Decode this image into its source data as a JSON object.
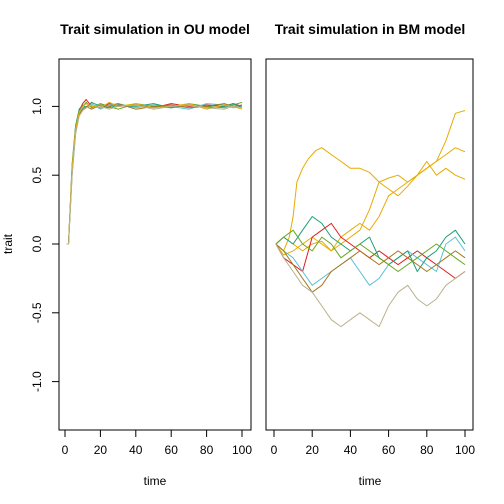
{
  "chart_data": [
    {
      "type": "line",
      "title": "Trait simulation in OU model",
      "xlabel": "time",
      "ylabel": "trait",
      "xlim": [
        0,
        100
      ],
      "ylim": [
        -1.25,
        1.25
      ],
      "xticks": [
        "0",
        "20",
        "40",
        "60",
        "80",
        "100"
      ],
      "yticks": [
        "-1.0",
        "-0.5",
        "0.0",
        "0.5",
        "1.0"
      ],
      "grid": false,
      "legend": "none",
      "series": [
        {
          "color": "#E41A1C",
          "x": [
            1,
            2,
            4,
            6,
            8,
            10,
            12,
            15,
            20,
            25,
            30,
            40,
            50,
            60,
            70,
            80,
            90,
            95,
            100
          ],
          "y": [
            0.0,
            0.0,
            0.55,
            0.85,
            0.97,
            1.02,
            1.05,
            1.0,
            0.99,
            1.02,
            1.0,
            1.01,
            0.99,
            1.02,
            1.0,
            1.01,
            1.0,
            1.02,
            1.0
          ]
        },
        {
          "color": "#66A61E",
          "x": [
            1,
            2,
            4,
            6,
            8,
            10,
            12,
            15,
            20,
            25,
            30,
            40,
            50,
            60,
            70,
            80,
            90,
            95,
            100
          ],
          "y": [
            0.0,
            0.0,
            0.5,
            0.82,
            0.96,
            1.0,
            1.03,
            0.99,
            1.02,
            1.0,
            0.98,
            1.02,
            1.0,
            0.99,
            1.02,
            1.0,
            0.99,
            1.01,
            1.03
          ]
        },
        {
          "color": "#5BC0D6",
          "x": [
            1,
            2,
            4,
            6,
            8,
            10,
            12,
            15,
            20,
            25,
            30,
            40,
            50,
            60,
            70,
            80,
            90,
            95,
            100
          ],
          "y": [
            0.0,
            0.0,
            0.52,
            0.8,
            0.95,
            0.99,
            1.0,
            1.02,
            0.98,
            1.01,
            1.02,
            0.99,
            1.01,
            1.0,
            0.98,
            1.02,
            1.01,
            0.99,
            1.0
          ]
        },
        {
          "color": "#1B9E77",
          "x": [
            1,
            2,
            4,
            6,
            8,
            10,
            12,
            15,
            20,
            25,
            30,
            40,
            50,
            60,
            70,
            80,
            90,
            95,
            100
          ],
          "y": [
            0.0,
            0.0,
            0.58,
            0.86,
            0.98,
            1.01,
            0.99,
            1.03,
            1.0,
            0.99,
            1.01,
            1.0,
            1.02,
            0.99,
            1.01,
            0.99,
            1.0,
            1.02,
            0.99
          ]
        },
        {
          "color": "#A6761D",
          "x": [
            1,
            2,
            4,
            6,
            8,
            10,
            12,
            15,
            20,
            25,
            30,
            40,
            50,
            60,
            70,
            80,
            90,
            95,
            100
          ],
          "y": [
            0.0,
            0.0,
            0.54,
            0.83,
            0.94,
            0.98,
            1.0,
            0.98,
            1.01,
            1.0,
            1.02,
            0.98,
            1.0,
            1.01,
            0.99,
            1.0,
            1.02,
            1.0,
            1.01
          ]
        },
        {
          "color": "#E6AB02",
          "x": [
            1,
            2,
            4,
            6,
            8,
            10,
            12,
            15,
            20,
            25,
            30,
            40,
            50,
            60,
            70,
            80,
            90,
            95,
            100
          ],
          "y": [
            0.0,
            0.0,
            0.56,
            0.84,
            0.96,
            1.0,
            1.02,
            1.0,
            0.99,
            1.03,
            1.0,
            1.02,
            0.99,
            1.0,
            1.02,
            0.98,
            1.01,
            1.0,
            0.98
          ]
        },
        {
          "color": "#B8B28A",
          "x": [
            1,
            2,
            4,
            6,
            8,
            10,
            12,
            15,
            20,
            25,
            30,
            40,
            50,
            60,
            70,
            80,
            90,
            95,
            100
          ],
          "y": [
            0.0,
            0.0,
            0.5,
            0.8,
            0.93,
            0.97,
            0.99,
            1.01,
            1.0,
            0.98,
            1.0,
            1.01,
            0.98,
            1.0,
            1.01,
            0.99,
            0.98,
            1.0,
            0.99
          ]
        }
      ]
    },
    {
      "type": "line",
      "title": "Trait simulation in BM model",
      "xlabel": "time",
      "ylabel": "",
      "xlim": [
        0,
        100
      ],
      "ylim": [
        -1.25,
        1.25
      ],
      "xticks": [
        "0",
        "20",
        "40",
        "60",
        "80",
        "100"
      ],
      "yticks": [],
      "grid": false,
      "legend": "none",
      "series": [
        {
          "color": "#E6AB02",
          "x": [
            1,
            5,
            8,
            10,
            12,
            15,
            18,
            22,
            25,
            30,
            35,
            40,
            45,
            50,
            55,
            60,
            65,
            70,
            75,
            80,
            85,
            90,
            95,
            100
          ],
          "y": [
            0.0,
            -0.05,
            0.05,
            0.2,
            0.45,
            0.55,
            0.62,
            0.68,
            0.7,
            0.65,
            0.6,
            0.55,
            0.55,
            0.52,
            0.45,
            0.4,
            0.35,
            0.42,
            0.5,
            0.55,
            0.6,
            0.65,
            0.7,
            0.67
          ]
        },
        {
          "color": "#E6AB02",
          "x": [
            1,
            5,
            10,
            15,
            20,
            25,
            30,
            35,
            40,
            45,
            50,
            55,
            60,
            65,
            70,
            75,
            80,
            85,
            90,
            95,
            100
          ],
          "y": [
            0.0,
            0.05,
            0.0,
            -0.05,
            0.0,
            0.02,
            -0.05,
            0.0,
            0.05,
            0.1,
            0.25,
            0.45,
            0.48,
            0.5,
            0.45,
            0.5,
            0.55,
            0.6,
            0.75,
            0.95,
            0.97
          ]
        },
        {
          "color": "#E6AB02",
          "x": [
            1,
            5,
            10,
            15,
            20,
            25,
            30,
            35,
            40,
            45,
            50,
            55,
            60,
            65,
            70,
            75,
            80,
            85,
            90,
            95,
            100
          ],
          "y": [
            0.0,
            -0.08,
            -0.05,
            0.0,
            0.05,
            0.0,
            -0.05,
            0.05,
            0.1,
            0.15,
            0.1,
            0.2,
            0.35,
            0.4,
            0.45,
            0.5,
            0.6,
            0.5,
            0.55,
            0.5,
            0.47
          ]
        },
        {
          "color": "#E41A1C",
          "x": [
            1,
            5,
            10,
            15,
            20,
            25,
            30,
            35,
            40,
            45,
            50,
            55,
            60,
            65,
            70,
            75,
            80,
            85,
            90,
            95,
            100
          ],
          "y": [
            0.0,
            -0.1,
            -0.15,
            -0.2,
            0.05,
            0.1,
            0.15,
            0.05,
            0.0,
            -0.05,
            -0.1,
            -0.05,
            -0.1,
            -0.15,
            -0.1,
            -0.05,
            -0.1,
            -0.15,
            -0.2,
            -0.25,
            -0.2
          ]
        },
        {
          "color": "#5BC0D6",
          "x": [
            1,
            5,
            10,
            15,
            20,
            25,
            30,
            35,
            40,
            45,
            50,
            55,
            60,
            65,
            70,
            75,
            80,
            85,
            90,
            95,
            100
          ],
          "y": [
            0.0,
            -0.05,
            -0.1,
            -0.2,
            -0.3,
            -0.25,
            -0.2,
            -0.15,
            -0.1,
            -0.2,
            -0.3,
            -0.25,
            -0.15,
            -0.1,
            -0.05,
            -0.1,
            -0.15,
            -0.2,
            0.0,
            0.05,
            -0.05
          ]
        },
        {
          "color": "#1B9E77",
          "x": [
            1,
            5,
            10,
            15,
            20,
            25,
            30,
            35,
            40,
            45,
            50,
            55,
            60,
            65,
            70,
            75,
            80,
            85,
            90,
            95,
            100
          ],
          "y": [
            0.0,
            0.05,
            0.0,
            0.1,
            0.2,
            0.15,
            0.05,
            0.0,
            -0.05,
            0.0,
            0.05,
            -0.1,
            -0.15,
            -0.1,
            -0.05,
            -0.2,
            -0.1,
            -0.05,
            0.05,
            0.1,
            0.0
          ]
        },
        {
          "color": "#A6761D",
          "x": [
            1,
            5,
            10,
            15,
            20,
            25,
            30,
            35,
            40,
            45,
            50,
            55,
            60,
            65,
            70,
            75,
            80,
            85,
            90,
            95,
            100
          ],
          "y": [
            0.0,
            -0.05,
            -0.15,
            -0.25,
            -0.35,
            -0.3,
            -0.2,
            -0.15,
            -0.1,
            -0.05,
            -0.1,
            -0.15,
            -0.1,
            -0.05,
            -0.1,
            -0.15,
            -0.2,
            -0.15,
            -0.1,
            -0.05,
            -0.1
          ]
        },
        {
          "color": "#66A61E",
          "x": [
            1,
            5,
            10,
            15,
            20,
            25,
            30,
            35,
            40,
            45,
            50,
            55,
            60,
            65,
            70,
            75,
            80,
            85,
            90,
            95,
            100
          ],
          "y": [
            0.0,
            0.05,
            0.1,
            0.0,
            -0.05,
            0.05,
            0.0,
            -0.1,
            -0.05,
            0.0,
            -0.05,
            -0.1,
            -0.15,
            -0.2,
            -0.15,
            -0.1,
            -0.05,
            0.0,
            -0.05,
            -0.1,
            -0.15
          ]
        },
        {
          "color": "#B8B28A",
          "x": [
            1,
            5,
            10,
            15,
            20,
            25,
            30,
            35,
            40,
            45,
            50,
            55,
            60,
            65,
            70,
            75,
            80,
            85,
            90,
            95,
            100
          ],
          "y": [
            0.0,
            -0.1,
            -0.2,
            -0.3,
            -0.35,
            -0.45,
            -0.55,
            -0.6,
            -0.55,
            -0.5,
            -0.55,
            -0.6,
            -0.45,
            -0.35,
            -0.3,
            -0.4,
            -0.45,
            -0.4,
            -0.3,
            -0.25,
            -0.2
          ]
        }
      ]
    }
  ]
}
